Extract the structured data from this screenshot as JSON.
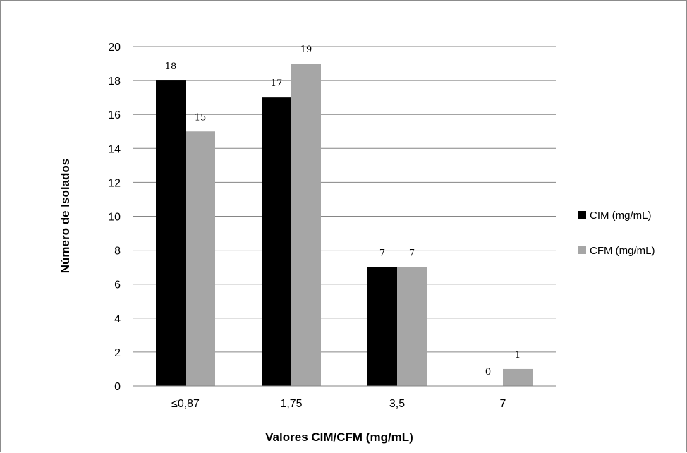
{
  "chart_data": {
    "type": "bar",
    "categories": [
      "≤0,87",
      "1,75",
      "3,5",
      "7"
    ],
    "series": [
      {
        "name": "CIM (mg/mL)",
        "values": [
          18,
          17,
          7,
          0
        ],
        "color": "#000000"
      },
      {
        "name": "CFM (mg/mL)",
        "values": [
          15,
          19,
          7,
          1
        ],
        "color": "#a6a6a6"
      }
    ],
    "xlabel": "Valores CIM/CFM (mg/mL)",
    "ylabel": "Número de Isolados",
    "ylim": [
      0,
      20
    ],
    "yticks": [
      "0",
      "2",
      "4",
      "6",
      "8",
      "10",
      "12",
      "14",
      "16",
      "18",
      "20"
    ],
    "grid": true,
    "legend_position": "right"
  }
}
